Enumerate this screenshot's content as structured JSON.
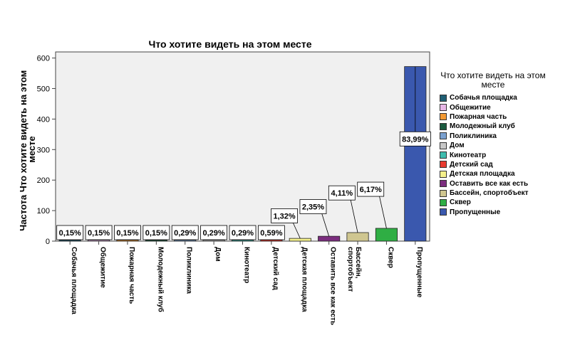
{
  "chart_data": {
    "type": "bar",
    "title": "Что хотите видеть на этом месте",
    "ylabel": "Частота Что хотите видеть на этом месте",
    "xlabel": "",
    "ylim": [
      0,
      620
    ],
    "yticks": [
      0,
      100,
      200,
      300,
      400,
      500,
      600
    ],
    "categories": [
      "Собачья площадка",
      "Общежитие",
      "Пожарная часть",
      "Молодежный клуб",
      "Поликлиника",
      "Дом",
      "Кинотеатр",
      "Детский сад",
      "Детская площадка",
      "Оставить все как есть",
      "Бассейн, спортобъект",
      "Сквер",
      "Пропущенные"
    ],
    "values": [
      1,
      1,
      1,
      1,
      2,
      2,
      2,
      4,
      9,
      16,
      28,
      42,
      572
    ],
    "labels": [
      "0,15%",
      "0,15%",
      "0,15%",
      "0,15%",
      "0,29%",
      "0,29%",
      "0,29%",
      "0,59%",
      "1,32%",
      "2,35%",
      "4,11%",
      "6,17%",
      "83,99%"
    ],
    "colors": [
      "#1f5f74",
      "#e7b6e6",
      "#f39a33",
      "#1a5a3f",
      "#7aa0cf",
      "#c8c8c8",
      "#3fbcae",
      "#e83a2f",
      "#f4f08b",
      "#7b2d7e",
      "#cfc690",
      "#2fae44",
      "#3a58ae"
    ],
    "legend_title": "Что хотите видеть на этом месте",
    "legend_position": "right",
    "plot_background": "#f0f0f0",
    "grid": false
  }
}
